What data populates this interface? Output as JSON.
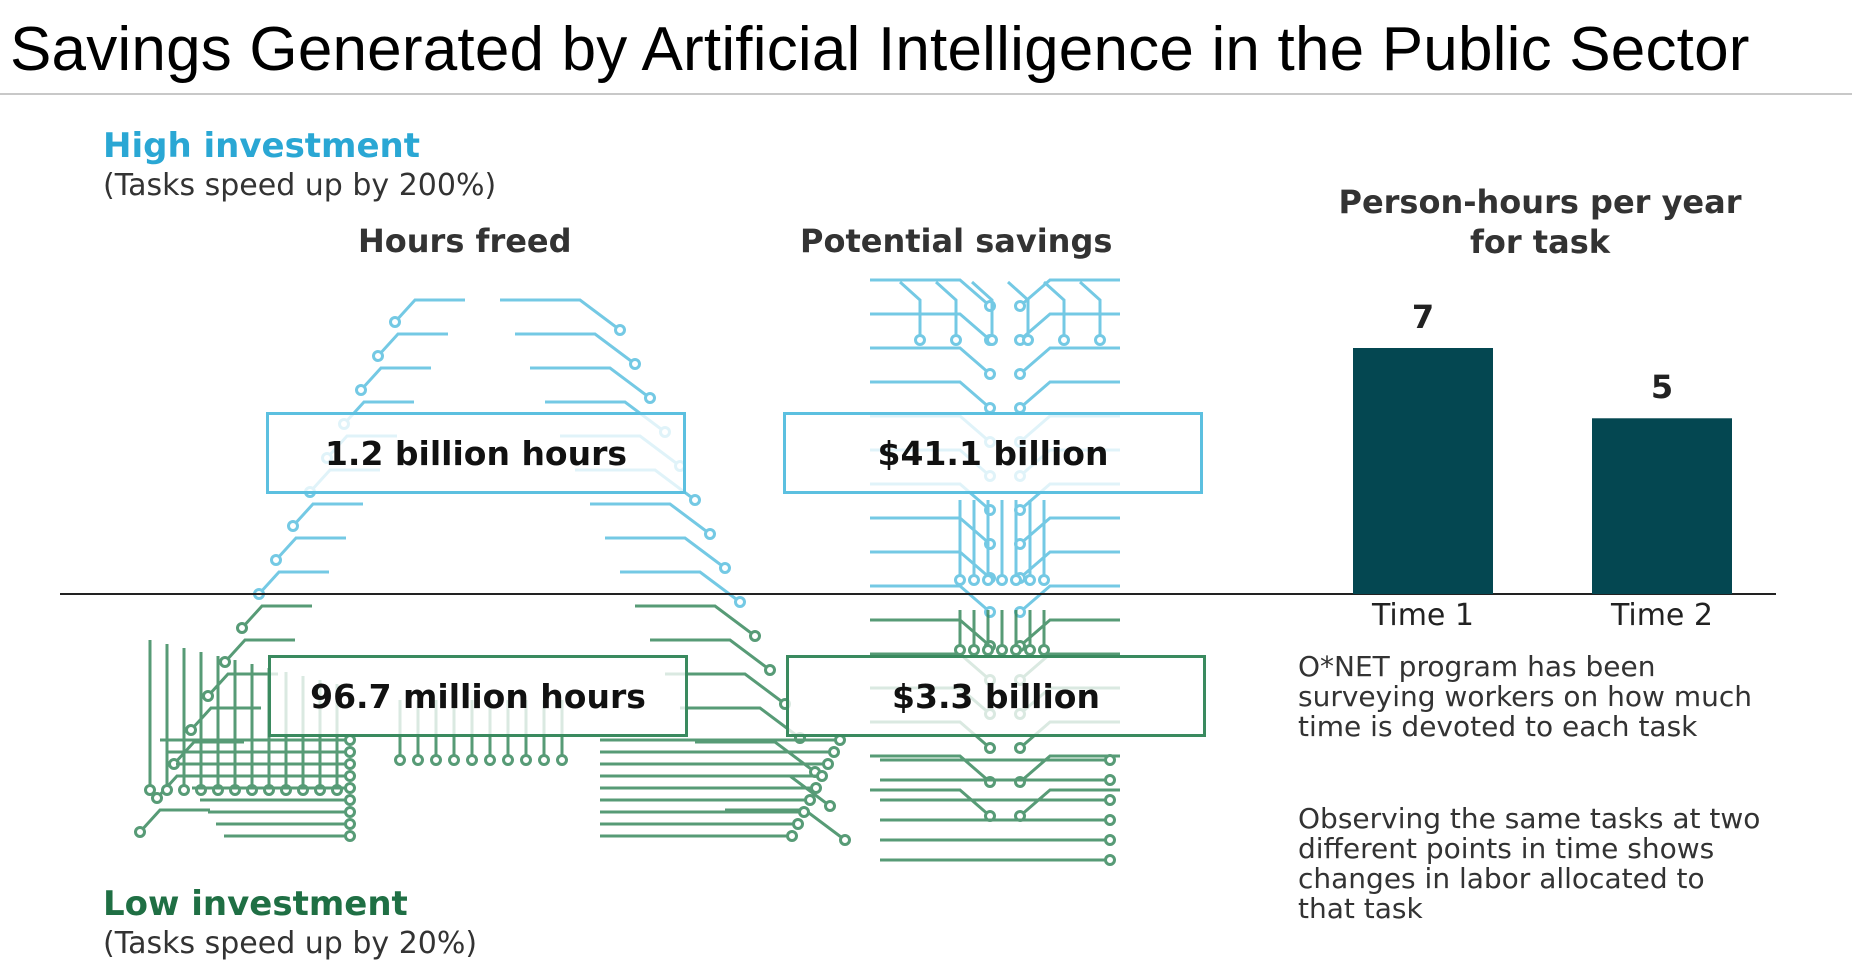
{
  "title": "Savings Generated by Artificial Intelligence in the Public Sector",
  "high": {
    "label": "High investment",
    "sub": "(Tasks speed up by 200%)",
    "hours": "1.2 billion hours",
    "savings": "$41.1 billion"
  },
  "low": {
    "label": "Low investment",
    "sub": "(Tasks speed up by 20%)",
    "hours": "96.7 million hours",
    "savings": "$3.3 billion"
  },
  "columns": {
    "hours": "Hours freed",
    "savings": "Potential savings"
  },
  "colors": {
    "high": "#5cc0e0",
    "low": "#3a8a5f",
    "bar": "#044751"
  },
  "chart_data": {
    "type": "bar",
    "title": "Person-hours per year for task",
    "categories": [
      "Time 1",
      "Time 2"
    ],
    "values": [
      7,
      5
    ],
    "ylim": [
      0,
      7
    ],
    "grid": false,
    "legend": "none"
  },
  "notes": [
    "O*NET program has been surveying workers on how much time is devoted to each task",
    "Observing the same tasks at two different points in time shows changes in labor allocated to that task"
  ]
}
